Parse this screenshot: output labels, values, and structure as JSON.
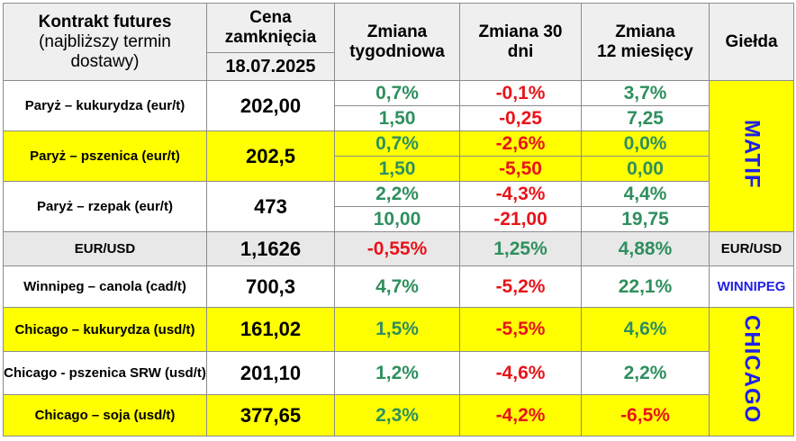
{
  "header": {
    "contract_l1": "Kontrakt futures",
    "contract_l2": "(najbliższy termin",
    "contract_l3": "dostawy)",
    "close_l1": "Cena",
    "close_l2": "zamknięcia",
    "close_date": "18.07.2025",
    "weekly_l1": "Zmiana",
    "weekly_l2": "tygodniowa",
    "d30_l1": "Zmiana 30",
    "d30_l2": "dni",
    "m12_l1": "Zmiana",
    "m12_l2": "12 miesięcy",
    "exchange": "Giełda"
  },
  "rows": [
    {
      "name": "Paryż – kukurydza  (eur/t)",
      "price": "202,00",
      "weekly_pct": "0,7%",
      "weekly_abs": "1,50",
      "d30_pct": "-0,1%",
      "d30_abs": "-0,25",
      "m12_pct": "3,7%",
      "m12_abs": "7,25"
    },
    {
      "name": "Paryż – pszenica (eur/t)",
      "price": "202,5",
      "weekly_pct": "0,7%",
      "weekly_abs": "1,50",
      "d30_pct": "-2,6%",
      "d30_abs": "-5,50",
      "m12_pct": "0,0%",
      "m12_abs": "0,00"
    },
    {
      "name": "Paryż – rzepak (eur/t)",
      "price": "473",
      "weekly_pct": "2,2%",
      "weekly_abs": "10,00",
      "d30_pct": "-4,3%",
      "d30_abs": "-21,00",
      "m12_pct": "4,4%",
      "m12_abs": "19,75"
    },
    {
      "name": "EUR/USD",
      "price": "1,1626",
      "weekly": "-0,55%",
      "d30": "1,25%",
      "m12": "4,88%",
      "exchange": "EUR/USD"
    },
    {
      "name": "Winnipeg – canola (cad/t)",
      "price": "700,3",
      "weekly": "4,7%",
      "d30": "-5,2%",
      "m12": "22,1%",
      "exchange": "WINNIPEG"
    },
    {
      "name": "Chicago – kukurydza (usd/t)",
      "price": "161,02",
      "weekly": "1,5%",
      "d30": "-5,5%",
      "m12": "4,6%"
    },
    {
      "name": "Chicago - pszenica SRW (usd/t)",
      "price": "201,10",
      "weekly": "1,2%",
      "d30": "-4,6%",
      "m12": "2,2%"
    },
    {
      "name": "Chicago – soja (usd/t)",
      "price": "377,65",
      "weekly": "2,3%",
      "d30": "-4,2%",
      "m12": "-6,5%"
    }
  ],
  "exchanges": {
    "matif": "MATIF",
    "chicago": "CHICAGO"
  },
  "colors": {
    "green": "#2f8f5e",
    "red": "#e8141a",
    "blue": "#1f1fe8",
    "yellow": "#ffff00",
    "header_gray": "#efefef"
  }
}
